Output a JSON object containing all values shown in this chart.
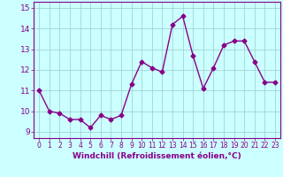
{
  "x": [
    0,
    1,
    2,
    3,
    4,
    5,
    6,
    7,
    8,
    9,
    10,
    11,
    12,
    13,
    14,
    15,
    16,
    17,
    18,
    19,
    20,
    21,
    22,
    23
  ],
  "y": [
    11.0,
    10.0,
    9.9,
    9.6,
    9.6,
    9.2,
    9.8,
    9.6,
    9.8,
    11.3,
    12.4,
    12.1,
    11.9,
    14.2,
    14.6,
    12.7,
    11.1,
    12.1,
    13.2,
    13.4,
    13.4,
    12.4,
    11.4,
    11.4
  ],
  "line_color": "#880088",
  "marker": "D",
  "marker_size": 2.5,
  "xlabel": "Windchill (Refroidissement éolien,°C)",
  "xlabel_color": "#880088",
  "xlabel_fontsize": 6.5,
  "xtick_labels": [
    "0",
    "1",
    "2",
    "3",
    "4",
    "5",
    "6",
    "7",
    "8",
    "9",
    "10",
    "11",
    "12",
    "13",
    "14",
    "15",
    "16",
    "17",
    "18",
    "19",
    "20",
    "21",
    "22",
    "23"
  ],
  "xtick_fontsize": 5.5,
  "ytick_fontsize": 6.5,
  "ylim": [
    8.7,
    15.3
  ],
  "yticks": [
    9,
    10,
    11,
    12,
    13,
    14,
    15
  ],
  "background_color": "#ccffff",
  "grid_color": "#99cccc",
  "tick_color": "#880088",
  "linewidth": 1.0
}
